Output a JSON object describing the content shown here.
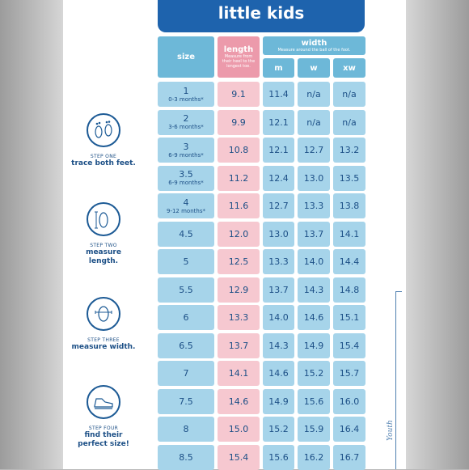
{
  "title": "little kids",
  "headers": {
    "size": "size",
    "length": "length",
    "length_note": "Measure from their heel to the longest toe.",
    "width": "width",
    "width_note": "Measure around the ball of the foot.",
    "widths": [
      "m",
      "w",
      "xw"
    ]
  },
  "rows": [
    {
      "size": "1",
      "age": "0-3 months*",
      "length": "9.1",
      "m": "11.4",
      "w": "n/a",
      "xw": "n/a"
    },
    {
      "size": "2",
      "age": "3-6 months*",
      "length": "9.9",
      "m": "12.1",
      "w": "n/a",
      "xw": "n/a"
    },
    {
      "size": "3",
      "age": "6-9 months*",
      "length": "10.8",
      "m": "12.1",
      "w": "12.7",
      "xw": "13.2"
    },
    {
      "size": "3.5",
      "age": "6-9 months*",
      "length": "11.2",
      "m": "12.4",
      "w": "13.0",
      "xw": "13.5"
    },
    {
      "size": "4",
      "age": "9-12 months*",
      "length": "11.6",
      "m": "12.7",
      "w": "13.3",
      "xw": "13.8"
    },
    {
      "size": "4.5",
      "age": "",
      "length": "12.0",
      "m": "13.0",
      "w": "13.7",
      "xw": "14.1"
    },
    {
      "size": "5",
      "age": "",
      "length": "12.5",
      "m": "13.3",
      "w": "14.0",
      "xw": "14.4"
    },
    {
      "size": "5.5",
      "age": "",
      "length": "12.9",
      "m": "13.7",
      "w": "14.3",
      "xw": "14.8"
    },
    {
      "size": "6",
      "age": "",
      "length": "13.3",
      "m": "14.0",
      "w": "14.6",
      "xw": "15.1"
    },
    {
      "size": "6.5",
      "age": "",
      "length": "13.7",
      "m": "14.3",
      "w": "14.9",
      "xw": "15.4"
    },
    {
      "size": "7",
      "age": "",
      "length": "14.1",
      "m": "14.6",
      "w": "15.2",
      "xw": "15.7"
    },
    {
      "size": "7.5",
      "age": "",
      "length": "14.6",
      "m": "14.9",
      "w": "15.6",
      "xw": "16.0"
    },
    {
      "size": "8",
      "age": "",
      "length": "15.0",
      "m": "15.2",
      "w": "15.9",
      "xw": "16.4"
    },
    {
      "size": "8.5",
      "age": "",
      "length": "15.4",
      "m": "15.6",
      "w": "16.2",
      "xw": "16.7"
    }
  ],
  "steps": [
    {
      "label": "STEP ONE",
      "text": "trace both feet.",
      "icon": "footprints-icon"
    },
    {
      "label": "STEP TWO",
      "text": "measure length.",
      "icon": "foot-length-icon"
    },
    {
      "label": "STEP THREE",
      "text": "measure width.",
      "icon": "foot-width-icon"
    },
    {
      "label": "STEP FOUR",
      "text": "find their perfect size!",
      "icon": "shoe-icon"
    }
  ],
  "side_text": "Youth",
  "colors": {
    "title_blue": "#1e63ad",
    "cell_blue": "#a6d4ea",
    "header_blue": "#6db8d8",
    "cell_pink": "#f6c8d0",
    "header_pink": "#ec9aab",
    "text_navy": "#1c4f86"
  }
}
